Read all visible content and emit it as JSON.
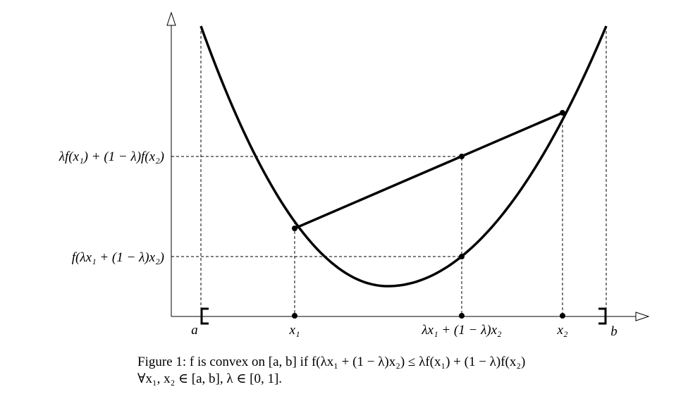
{
  "axis_labels": {
    "x": [
      "a",
      "x₁",
      "λx₁ + (1 − λ)x₂",
      "x₂",
      "b"
    ],
    "y": [
      "λf(x₁) + (1 − λ)f(x₂)",
      "f(λx₁ + (1 − λ)x₂)"
    ]
  },
  "caption": {
    "line1": "Figure 1: f is convex on [a, b] if f(λx₁ + (1 − λ)x₂) ≤ λf(x₁) + (1 − λ)f(x₂)",
    "line2": "∀x₁, x₂ ∈ [a, b],   λ ∈ [0, 1]."
  }
}
